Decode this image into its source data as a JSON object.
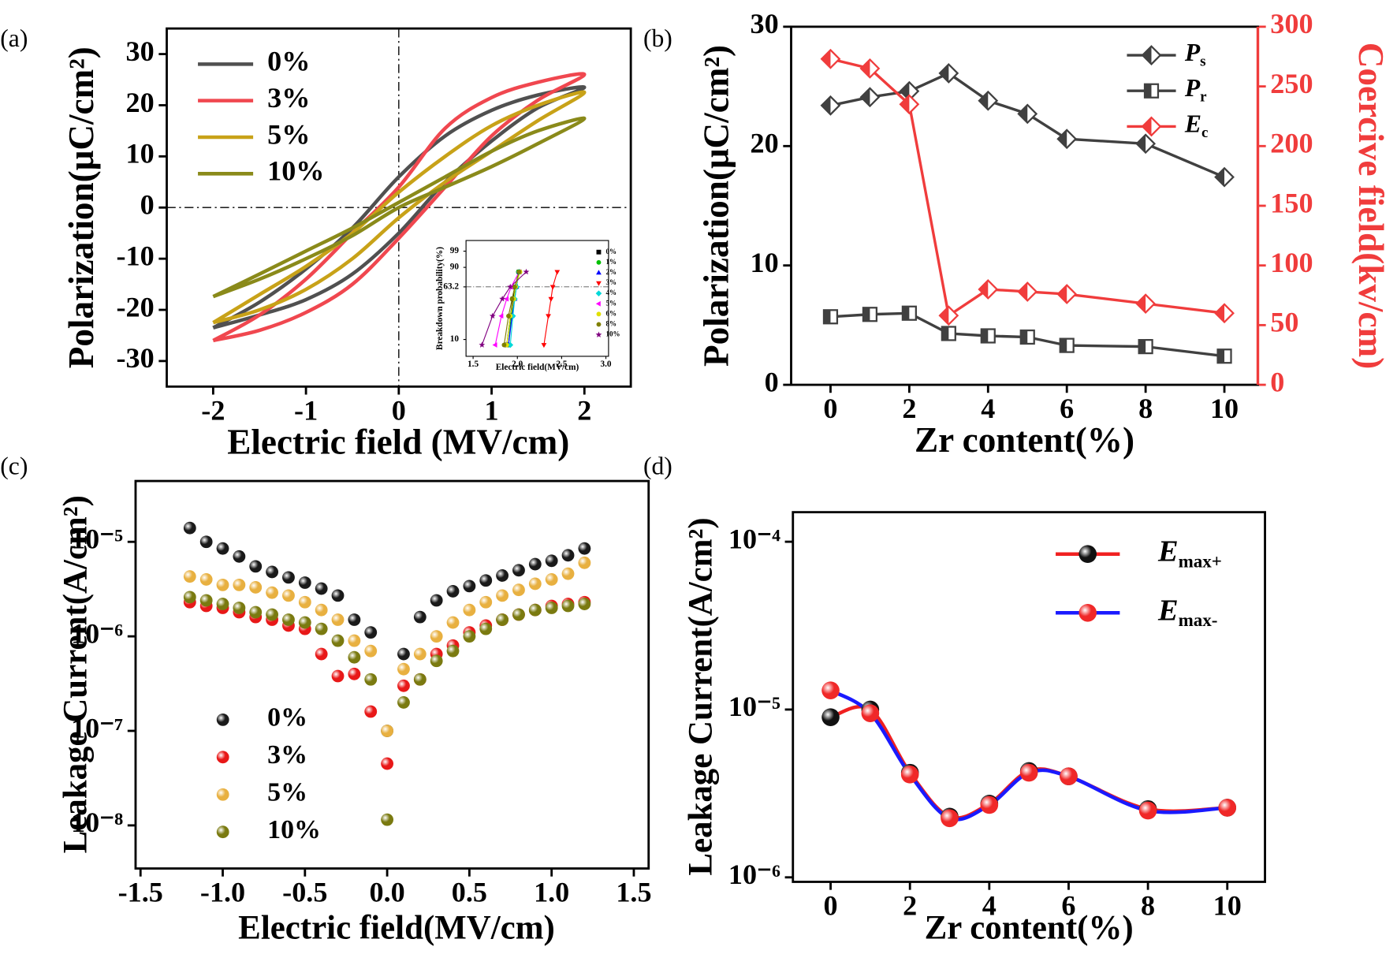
{
  "chart_data": [
    {
      "type": "line",
      "panel_label": "(a)",
      "xlabel": "Electric field (MV/cm)",
      "ylabel": "Polarization(μC/cm²)",
      "xlim": [
        -2.5,
        2.5
      ],
      "ylim": [
        -35,
        35
      ],
      "xticks": [
        -2,
        -1,
        0,
        1,
        2
      ],
      "yticks": [
        -30,
        -20,
        -10,
        0,
        10,
        20,
        30
      ],
      "smooth": true,
      "zero_lines": true,
      "legend": "upper left",
      "series": [
        {
          "name": "0%",
          "color": "#505050",
          "x": [
            -2,
            -1.5,
            -1,
            -0.5,
            0,
            0.5,
            1,
            1.5,
            2,
            1.5,
            1,
            0.5,
            0,
            -0.5,
            -1,
            -1.5,
            -2
          ],
          "values": [
            -23.5,
            -21,
            -18,
            -13,
            -5,
            5,
            13,
            19.5,
            23.5,
            22,
            19,
            14,
            6,
            -4,
            -12,
            -18.5,
            -23.5
          ]
        },
        {
          "name": "3%",
          "color": "#f0474f",
          "x": [
            -2,
            -1.5,
            -1,
            -0.5,
            0,
            0.5,
            1,
            1.5,
            2,
            1.5,
            1,
            0.5,
            0,
            -0.5,
            -1,
            -1.5,
            -2
          ],
          "values": [
            -26,
            -24,
            -20.5,
            -15,
            -6,
            4,
            14,
            21,
            26,
            24.5,
            21.5,
            15.5,
            4,
            -5,
            -14,
            -21,
            -26
          ]
        },
        {
          "name": "5%",
          "color": "#c8a218",
          "x": [
            -2,
            -1.5,
            -1,
            -0.5,
            0,
            0.5,
            1,
            1.5,
            2,
            1.5,
            1,
            0.5,
            0,
            -0.5,
            -1,
            -1.5,
            -2
          ],
          "values": [
            -22.5,
            -20,
            -16,
            -10,
            -2,
            5,
            11,
            17,
            22.5,
            20,
            16,
            10,
            3,
            -5,
            -11.5,
            -17,
            -22.5
          ]
        },
        {
          "name": "10%",
          "color": "#8a8a1a",
          "x": [
            -2,
            -1.5,
            -1,
            -0.5,
            0,
            0.5,
            1,
            1.5,
            2,
            1.5,
            1,
            0.5,
            0,
            -0.5,
            -1,
            -1.5,
            -2
          ],
          "values": [
            -17.4,
            -14,
            -10,
            -5.5,
            0,
            4,
            8,
            12.5,
            17.4,
            15,
            11,
            6,
            1,
            -4,
            -8.5,
            -13,
            -17.4
          ]
        }
      ]
    },
    {
      "type": "scatter",
      "yscale": "weibull",
      "xlabel": "Electric field(MV/cm)",
      "ylabel": "Breakdown probability(%)",
      "xlim": [
        1.42,
        3.03
      ],
      "ylim": [
        5,
        99.93
      ],
      "xticks": [
        1.5,
        {
          "value": 2,
          "label": "2.0"
        },
        2.5,
        {
          "value": 3,
          "label": "3.0"
        }
      ],
      "yticks": [
        10,
        63.2,
        90,
        99
      ],
      "hline": 63.2,
      "fit_lines": true,
      "legend": "right",
      "series": [
        {
          "name": "0%",
          "color": "#000000",
          "marker": "square",
          "x": [
            1.88,
            1.92,
            1.95,
            1.98,
            2.02
          ],
          "values": [
            8,
            25,
            45,
            63.2,
            85
          ]
        },
        {
          "name": "1%",
          "color": "#00c000",
          "marker": "circle",
          "x": [
            1.9,
            1.93,
            1.96,
            1.98,
            2.01
          ],
          "values": [
            8,
            25,
            45,
            63.2,
            85
          ]
        },
        {
          "name": "2%",
          "color": "#0000ff",
          "marker": "triangle",
          "x": [
            1.9,
            1.94,
            1.97,
            1.99,
            2.02
          ],
          "values": [
            8,
            25,
            45,
            63.2,
            85
          ]
        },
        {
          "name": "3%",
          "color": "#ff0000",
          "marker": "tridown",
          "x": [
            2.3,
            2.35,
            2.38,
            2.4,
            2.45
          ],
          "values": [
            8,
            25,
            45,
            63.2,
            85
          ]
        },
        {
          "name": "4%",
          "color": "#00d8d8",
          "marker": "diamond",
          "x": [
            1.92,
            1.95,
            1.97,
            1.99,
            2.02
          ],
          "values": [
            8,
            25,
            45,
            63.2,
            85
          ]
        },
        {
          "name": "5%",
          "color": "#ff00ff",
          "marker": "trileft",
          "x": [
            1.75,
            1.82,
            1.88,
            1.93,
            2.02
          ],
          "values": [
            8,
            25,
            45,
            63.2,
            85
          ]
        },
        {
          "name": "6%",
          "color": "#e0e000",
          "marker": "circle",
          "x": [
            1.88,
            1.92,
            1.96,
            1.98,
            2.03
          ],
          "values": [
            8,
            25,
            45,
            63.2,
            85
          ]
        },
        {
          "name": "8%",
          "color": "#808000",
          "marker": "circle",
          "x": [
            1.85,
            1.9,
            1.94,
            1.97,
            2.02
          ],
          "values": [
            8,
            25,
            45,
            63.2,
            85
          ]
        },
        {
          "name": "10%",
          "color": "#800080",
          "marker": "star",
          "x": [
            1.6,
            1.72,
            1.83,
            1.92,
            2.1
          ],
          "values": [
            8,
            25,
            45,
            63.2,
            85
          ]
        }
      ]
    },
    {
      "type": "line",
      "panel_label": "(b)",
      "xlabel": "Zr content(%)",
      "ylabel": "Polarization(μC/cm²)",
      "y2label": "Coercive field(kv/cm)",
      "y2color": "#f03c3c",
      "xlim": [
        -1,
        10.85
      ],
      "ylim": [
        0,
        30
      ],
      "y2lim": [
        0,
        300
      ],
      "xticks": [
        0,
        2,
        4,
        6,
        8,
        10
      ],
      "yticks": [
        0,
        10,
        20,
        30
      ],
      "y2ticks": [
        0,
        50,
        100,
        150,
        200,
        250,
        300
      ],
      "legend": "upper right",
      "name_subscript": true,
      "x": [
        0,
        1,
        2,
        3,
        4,
        5,
        6,
        8,
        10
      ],
      "series": [
        {
          "name": "Ps",
          "color": "#404040",
          "marker": "halfdiamond",
          "values": [
            23.4,
            24.1,
            24.6,
            26.1,
            23.8,
            22.7,
            20.6,
            20.2,
            17.4
          ]
        },
        {
          "name": "Pr",
          "color": "#404040",
          "marker": "halfsquare",
          "values": [
            5.7,
            5.9,
            6.0,
            4.3,
            4.1,
            4.0,
            3.3,
            3.2,
            2.4
          ]
        },
        {
          "name": "Ec",
          "color": "#f03c3c",
          "marker": "halfdiamond",
          "axis": "y2",
          "values": [
            273,
            265,
            235,
            58,
            80,
            78,
            76,
            68,
            60
          ]
        }
      ]
    },
    {
      "type": "scatter",
      "yscale": "log",
      "panel_label": "(c)",
      "xlabel": "Electric field(MV/cm)",
      "ylabel": "Leakage Current(A/cm²)",
      "xlim": [
        -1.53,
        1.59
      ],
      "ylim": [
        3.5e-09,
        4.4e-05
      ],
      "xticks": [
        -1.5,
        {
          "value": -1,
          "label": "-1.0"
        },
        -0.5,
        {
          "value": 0,
          "label": "0.0"
        },
        0.5,
        {
          "value": 1,
          "label": "1.0"
        },
        1.5
      ],
      "yticks": [
        {
          "value": 1e-08,
          "label": "10⁻⁸"
        },
        {
          "value": 1e-07,
          "label": "10⁻⁷"
        },
        {
          "value": 1e-06,
          "label": "10⁻⁶"
        },
        {
          "value": 1e-05,
          "label": "10⁻⁵"
        }
      ],
      "legend": "lower left",
      "x": [
        -1.2,
        -1.1,
        -1.0,
        -0.9,
        -0.8,
        -0.7,
        -0.6,
        -0.5,
        -0.4,
        -0.3,
        -0.2,
        -0.1,
        0,
        0.1,
        0.2,
        0.3,
        0.4,
        0.5,
        0.6,
        0.7,
        0.8,
        0.9,
        1.0,
        1.1,
        1.2
      ],
      "series": [
        {
          "name": "0%",
          "color": "#1a1a1a",
          "marker": "sphere",
          "values": [
            1.4e-05,
            1e-05,
            8.5e-06,
            7e-06,
            5.5e-06,
            4.8e-06,
            4.2e-06,
            3.7e-06,
            3.2e-06,
            2.7e-06,
            1.5e-06,
            1.1e-06,
            1e-07,
            6.5e-07,
            1.6e-06,
            2.4e-06,
            3e-06,
            3.4e-06,
            3.9e-06,
            4.4e-06,
            5e-06,
            5.8e-06,
            6.3e-06,
            7.2e-06,
            8.5e-06
          ]
        },
        {
          "name": "3%",
          "color": "#e81818",
          "marker": "sphere",
          "values": [
            2.3e-06,
            2.1e-06,
            2e-06,
            1.8e-06,
            1.6e-06,
            1.5e-06,
            1.3e-06,
            1.2e-06,
            6.5e-07,
            3.8e-07,
            4e-07,
            1.6e-07,
            4.5e-08,
            3e-07,
            3.5e-07,
            6.5e-07,
            8e-07,
            1.1e-06,
            1.3e-06,
            1.5e-06,
            1.7e-06,
            1.9e-06,
            2.1e-06,
            2.2e-06,
            2.3e-06
          ]
        },
        {
          "name": "5%",
          "color": "#e8b040",
          "marker": "sphere",
          "values": [
            4.3e-06,
            4e-06,
            3.5e-06,
            3.5e-06,
            3.3e-06,
            2.9e-06,
            2.7e-06,
            2.3e-06,
            1.9e-06,
            1.5e-06,
            9e-07,
            7e-07,
            1e-07,
            4.5e-07,
            6.5e-07,
            1e-06,
            1.4e-06,
            1.9e-06,
            2.3e-06,
            2.7e-06,
            3.1e-06,
            3.6e-06,
            4e-06,
            4.6e-06,
            6e-06
          ]
        },
        {
          "name": "10%",
          "color": "#7a7a10",
          "marker": "sphere",
          "values": [
            2.6e-06,
            2.4e-06,
            2.2e-06,
            2e-06,
            1.8e-06,
            1.7e-06,
            1.5e-06,
            1.4e-06,
            1.2e-06,
            9e-07,
            6e-07,
            3.5e-07,
            1.15e-08,
            2e-07,
            3.5e-07,
            5.5e-07,
            7e-07,
            1e-06,
            1.2e-06,
            1.5e-06,
            1.7e-06,
            1.9e-06,
            2e-06,
            2.1e-06,
            2.2e-06
          ]
        }
      ]
    },
    {
      "type": "line",
      "yscale": "log",
      "panel_label": "(d)",
      "xlabel": "Zr content(%)",
      "ylabel": "Leakage Current(A/cm²)",
      "xlim": [
        -0.95,
        10.95
      ],
      "ylim": [
        9.4e-07,
        0.00015
      ],
      "xticks": [
        0,
        2,
        4,
        6,
        8,
        10
      ],
      "yticks": [
        {
          "value": 1e-06,
          "label": "10⁻⁶"
        },
        {
          "value": 1e-05,
          "label": "10⁻⁵"
        },
        {
          "value": 0.0001,
          "label": "10⁻⁴"
        }
      ],
      "smooth": true,
      "legend": "upper right",
      "name_subscript": true,
      "x": [
        0,
        1,
        2,
        3,
        4,
        5,
        6,
        8,
        10
      ],
      "series": [
        {
          "name": "Emax+",
          "color": "#f02020",
          "marker": "sphere",
          "marker_color": "#111111",
          "values": [
            9e-06,
            1e-05,
            4.2e-06,
            2.3e-06,
            2.75e-06,
            4.3e-06,
            4e-06,
            2.55e-06,
            2.6e-06
          ]
        },
        {
          "name": "Emax-",
          "color": "#1a1aff",
          "marker": "sphere",
          "marker_color": "#f02828",
          "values": [
            1.3e-05,
            9.5e-06,
            4.1e-06,
            2.25e-06,
            2.7e-06,
            4.2e-06,
            4e-06,
            2.5e-06,
            2.6e-06
          ]
        }
      ]
    }
  ]
}
